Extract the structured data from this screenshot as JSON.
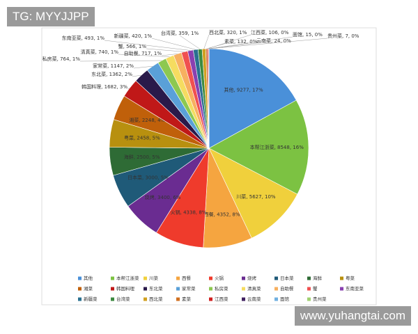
{
  "chart_data": {
    "type": "pie",
    "categories": [
      "其他",
      "本帮江浙菜",
      "川菜",
      "西餐",
      "火锅",
      "烧烤",
      "日本菜",
      "海鲜",
      "粤菜",
      "湘菜",
      "韩国料理",
      "东北菜",
      "家常菜",
      "私房菜",
      "清真菜",
      "自助餐",
      "蟹",
      "东南亚菜",
      "新疆菜",
      "台湾菜",
      "西北菜",
      "素菜",
      "江西菜",
      "云南菜",
      "面馆",
      "贵州菜"
    ],
    "values": [
      9277,
      8548,
      5627,
      4352,
      4338,
      3400,
      3000,
      2500,
      2458,
      2248,
      1682,
      1362,
      1147,
      764,
      740,
      717,
      566,
      493,
      420,
      359,
      320,
      132,
      106,
      24,
      15,
      7
    ],
    "value_labels": [
      "其他, 9277, 17%",
      "本帮江浙菜, 8548, 16%",
      "川菜, 5627, 10%",
      "西餐, 4352, 8%",
      "火锅, 4338, 8%",
      "烧烤, 3400, 6%",
      "日本菜, 3000, 5%",
      "海鲜, 2500, 5%",
      "粤菜, 2458, 5%",
      "湘菜, 2248, 4%",
      "韩国料理, 1682, 3%",
      "东北菜, 1362, 2%",
      "家常菜, 1147, 2%",
      "私房菜, 764, 1%",
      "清真菜, 740, 1%",
      "自助餐, 717, 1%",
      "蟹, 566, 1%",
      "东南亚菜, 493, 1%",
      "新疆菜, 420, 1%",
      "台湾菜, 359, 1%",
      "西北菜, 320, 1%",
      "素菜, 132, 0%",
      "江西菜, 106, 0%",
      "云南菜, 24, 0%",
      "面馆, 15, 0%",
      "贵州菜, 7, 0%"
    ],
    "colors": [
      "#4a90d9",
      "#7cc242",
      "#f0d03c",
      "#f5a540",
      "#ef3b2c",
      "#6a2c91",
      "#1f5a78",
      "#2e6b35",
      "#b8900f",
      "#c0600a",
      "#c01818",
      "#2a1a4a",
      "#5aa0d8",
      "#8dc850",
      "#f5dc60",
      "#f7b060",
      "#f05050",
      "#8a40b0",
      "#2a7090",
      "#3c8a40",
      "#d0a020",
      "#d07020",
      "#d02020",
      "#402060",
      "#70b0e0",
      "#a0d070"
    ],
    "legend": "bottom"
  },
  "watermarks": [
    "TG: MYYJJPP",
    "www.yuhangtai.com"
  ]
}
